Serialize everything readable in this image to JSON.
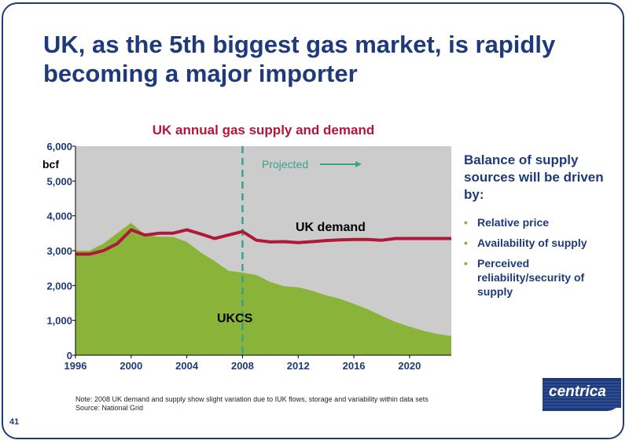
{
  "slide": {
    "title": "UK, as the 5th biggest gas market, is rapidly becoming a major importer",
    "page_number": "41",
    "logo_text": "centrica",
    "note_line1": "Note: 2008 UK demand and supply show slight variation due to IUK flows, storage and variability within data sets",
    "note_line2": "Source: National Grid"
  },
  "sidebar": {
    "heading": "Balance of supply sources will be driven by:",
    "bullets": [
      "Relative price",
      "Availability of supply",
      "Perceived reliability/security of supply"
    ],
    "bullet_color": "#8ab33a",
    "text_color": "#1f3a7a"
  },
  "chart_data": {
    "type": "area",
    "title": "UK annual gas supply and demand",
    "ylabel": "bcf",
    "xlabel": "",
    "xlim": [
      1996,
      2023
    ],
    "ylim": [
      0,
      6000
    ],
    "x_ticks": [
      1996,
      2000,
      2004,
      2008,
      2012,
      2016,
      2020
    ],
    "y_ticks": [
      0,
      1000,
      2000,
      3000,
      4000,
      5000,
      6000
    ],
    "y_tick_labels": [
      "0",
      "1,000",
      "2,000",
      "3,000",
      "4,000",
      "5,000",
      "6,000"
    ],
    "x_tick_labels": [
      "1996",
      "2000",
      "2004",
      "2008",
      "2012",
      "2016",
      "2020"
    ],
    "projected_from": 2008,
    "projected_label": "Projected",
    "background_color": "#cccccc",
    "grid": false,
    "series": [
      {
        "name": "UKCS",
        "type": "area",
        "color": "#8ab33a",
        "x": [
          1996,
          1997,
          1998,
          1999,
          2000,
          2001,
          2002,
          2003,
          2004,
          2005,
          2006,
          2007,
          2008,
          2009,
          2010,
          2011,
          2012,
          2013,
          2014,
          2015,
          2016,
          2017,
          2018,
          2019,
          2020,
          2021,
          2022,
          2023
        ],
        "values": [
          3000,
          3000,
          3200,
          3500,
          3800,
          3450,
          3400,
          3400,
          3250,
          2950,
          2700,
          2420,
          2370,
          2300,
          2100,
          1980,
          1950,
          1850,
          1720,
          1620,
          1470,
          1320,
          1130,
          950,
          820,
          700,
          610,
          550
        ]
      },
      {
        "name": "UK demand",
        "type": "line",
        "color": "#b0183a",
        "x": [
          1996,
          1997,
          1998,
          1999,
          2000,
          2001,
          2002,
          2003,
          2004,
          2005,
          2006,
          2007,
          2008,
          2009,
          2010,
          2011,
          2012,
          2013,
          2014,
          2015,
          2016,
          2017,
          2018,
          2019,
          2020,
          2021,
          2022,
          2023
        ],
        "values": [
          2900,
          2900,
          3000,
          3200,
          3600,
          3450,
          3500,
          3500,
          3600,
          3480,
          3350,
          3450,
          3550,
          3300,
          3250,
          3260,
          3230,
          3260,
          3290,
          3310,
          3320,
          3320,
          3300,
          3350,
          3350,
          3350,
          3350,
          3350
        ]
      }
    ]
  }
}
